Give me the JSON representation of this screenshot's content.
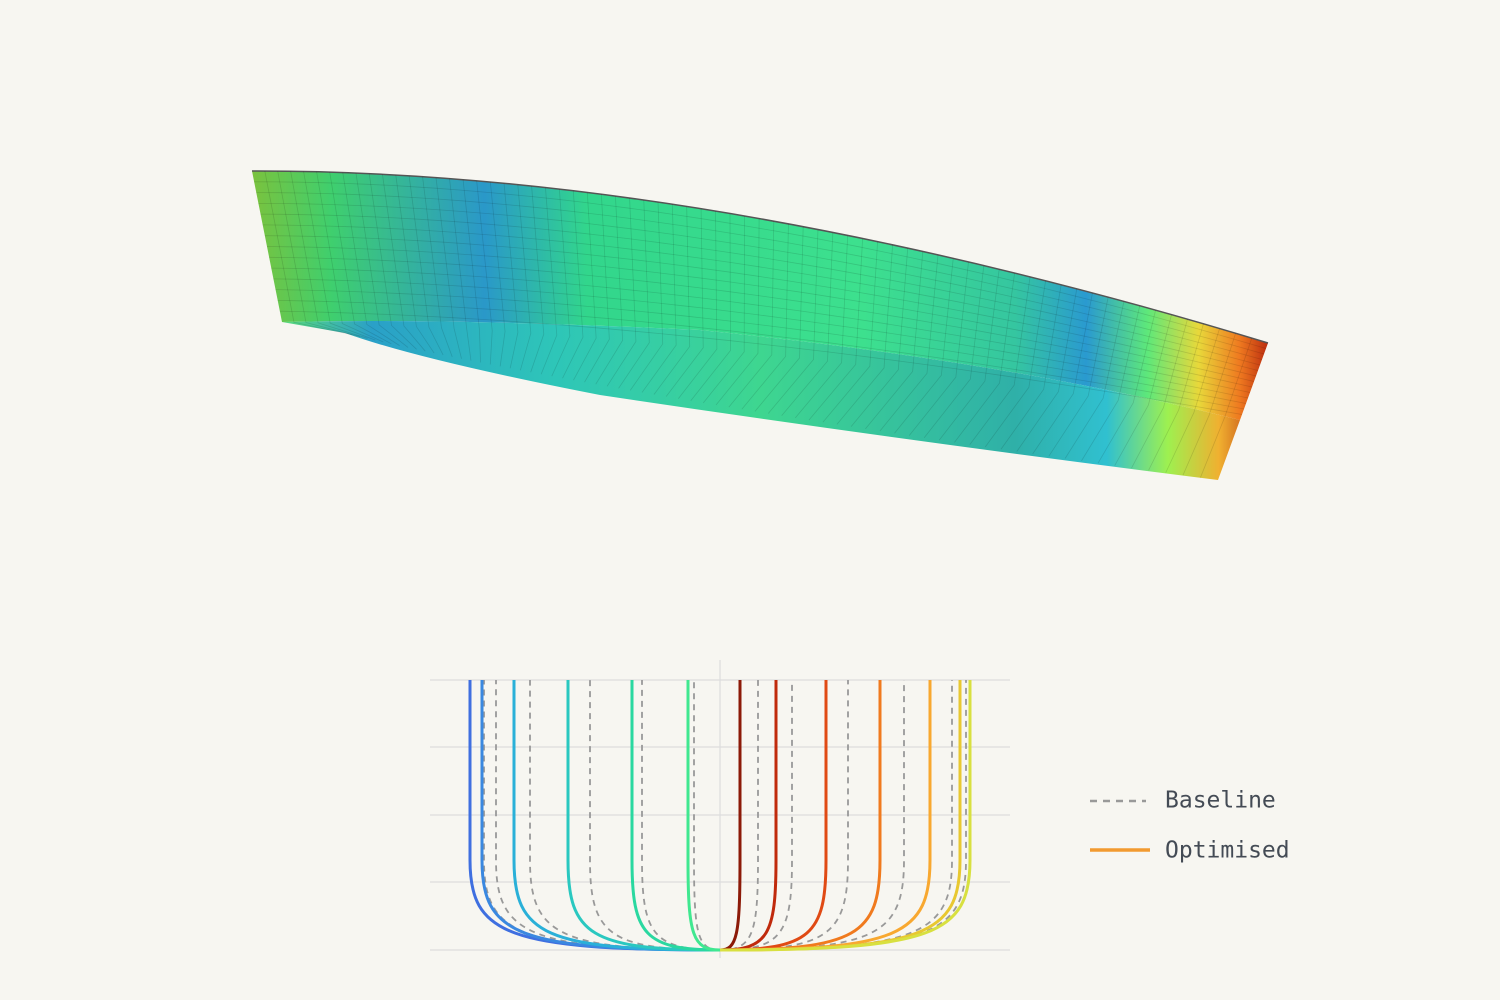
{
  "legend": [
    {
      "label": "Baseline"
    },
    {
      "label": "Optimised"
    }
  ]
}
